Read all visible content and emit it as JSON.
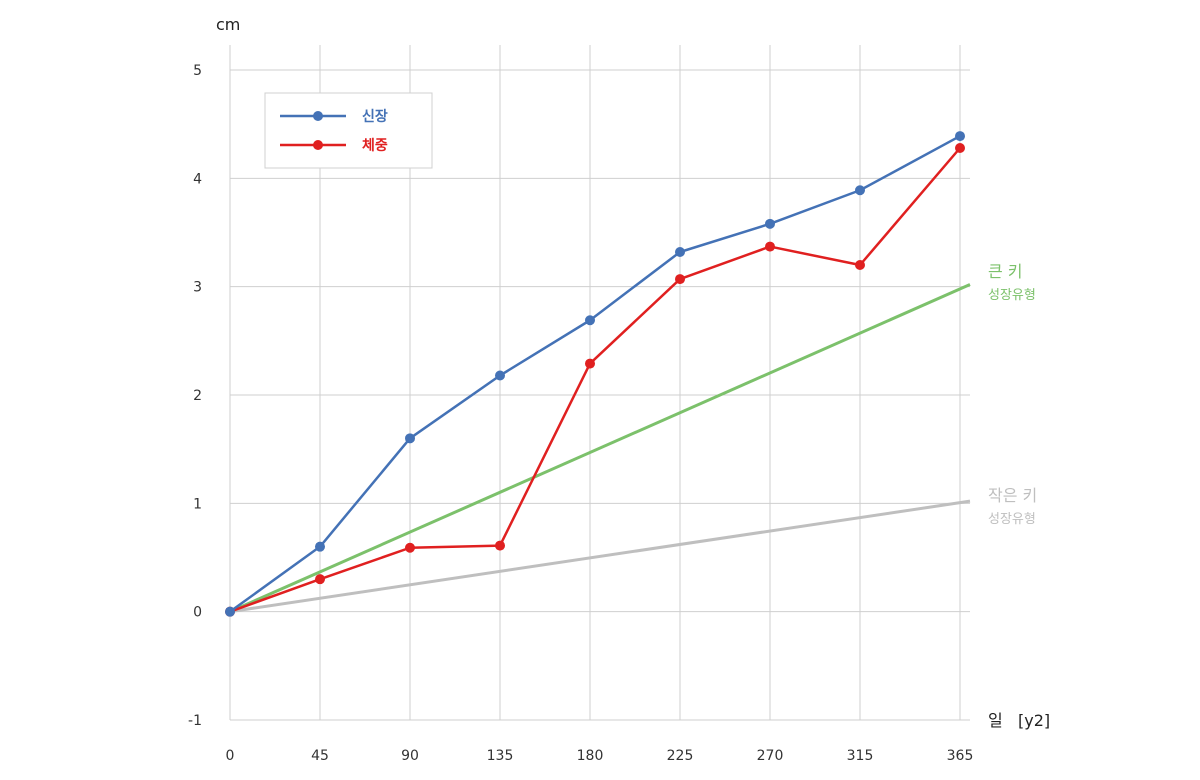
{
  "chart_data": {
    "type": "line",
    "y_unit": "cm",
    "x_unit": "일",
    "x_unit_suffix": "[y2]",
    "x_ticks": [
      0,
      45,
      90,
      135,
      180,
      225,
      270,
      315,
      365
    ],
    "y_ticks": [
      -1,
      0,
      1,
      2,
      3,
      4,
      5
    ],
    "xlim": [
      0,
      365
    ],
    "ylim": [
      -1,
      5
    ],
    "grid": true,
    "legend_position": "top-left",
    "series": [
      {
        "name": "신장",
        "color": "#4472b6",
        "x": [
          0,
          45,
          90,
          135,
          180,
          225,
          270,
          315,
          365
        ],
        "y": [
          0,
          0.6,
          1.6,
          2.18,
          2.69,
          3.32,
          3.58,
          3.89,
          4.39
        ]
      },
      {
        "name": "체중",
        "color": "#e02020",
        "x": [
          0,
          45,
          90,
          135,
          180,
          225,
          270,
          315,
          365
        ],
        "y": [
          0,
          0.3,
          0.59,
          0.61,
          2.29,
          3.07,
          3.37,
          3.2,
          4.28
        ]
      }
    ],
    "reference_lines": [
      {
        "label": "큰 키",
        "sublabel": "성장유형",
        "color": "#7cc16b",
        "x": [
          0,
          365
        ],
        "y": [
          0,
          3.02
        ]
      },
      {
        "label": "작은 키",
        "sublabel": "성장유형",
        "color": "#bfbfbf",
        "x": [
          0,
          365
        ],
        "y": [
          0,
          1.02
        ]
      }
    ]
  }
}
